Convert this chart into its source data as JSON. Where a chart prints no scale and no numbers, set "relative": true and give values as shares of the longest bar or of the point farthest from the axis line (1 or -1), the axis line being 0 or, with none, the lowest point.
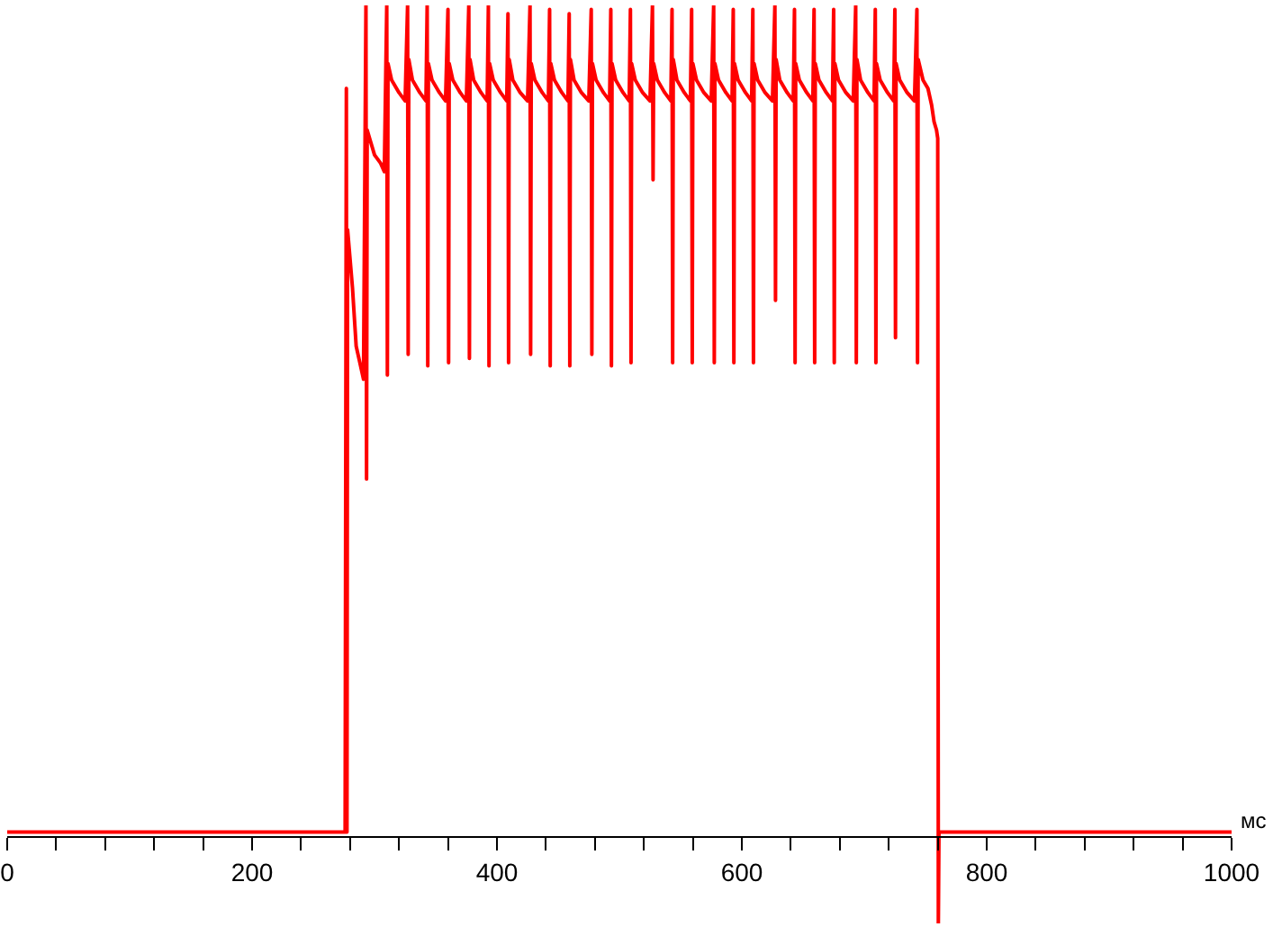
{
  "chart_data": {
    "type": "line",
    "relative": true,
    "xlabel": "мс",
    "color": "#ff0000",
    "marker": "none",
    "legend": false,
    "tick_labels": "x",
    "xlim": [
      0,
      1000
    ],
    "xticks": [
      0,
      {
        "value": 40,
        "label": null
      },
      {
        "value": 80,
        "label": null
      },
      {
        "value": 120,
        "label": null
      },
      {
        "value": 160,
        "label": null
      },
      200,
      {
        "value": 240,
        "label": null
      },
      {
        "value": 280,
        "label": null
      },
      {
        "value": 320,
        "label": null
      },
      {
        "value": 360,
        "label": null
      },
      400,
      {
        "value": 440,
        "label": null
      },
      {
        "value": 480,
        "label": null
      },
      {
        "value": 520,
        "label": null
      },
      {
        "value": 560,
        "label": null
      },
      600,
      {
        "value": 640,
        "label": null
      },
      {
        "value": 680,
        "label": null
      },
      {
        "value": 720,
        "label": null
      },
      {
        "value": 760,
        "label": null
      },
      800,
      {
        "value": 840,
        "label": null
      },
      {
        "value": 880,
        "label": null
      },
      {
        "value": 920,
        "label": null
      },
      {
        "value": 960,
        "label": null
      },
      1000
    ],
    "x": [
      0,
      276,
      277,
      277.5,
      278,
      282,
      285,
      288,
      291,
      293,
      293.5,
      294,
      296,
      300,
      305,
      308,
      310,
      310.5,
      311,
      314,
      320,
      325,
      327,
      327.5,
      328,
      331,
      337,
      342,
      343,
      343.5,
      344,
      347,
      353,
      358,
      360,
      360.5,
      361,
      364,
      370,
      375,
      377,
      377.5,
      378,
      381,
      387,
      392,
      393,
      393.5,
      394,
      397,
      403,
      408,
      409,
      409.5,
      410,
      413,
      419,
      425,
      427,
      427.5,
      428,
      431,
      437,
      442,
      443,
      443.5,
      444,
      447,
      453,
      458,
      459,
      459.5,
      460,
      463,
      469,
      475,
      477,
      477.5,
      478,
      481,
      487,
      492,
      493,
      493.5,
      494,
      497,
      503,
      508,
      509,
      509.5,
      510,
      513,
      519,
      525,
      527,
      527.5,
      528,
      531,
      537,
      542,
      543,
      543.5,
      544,
      547,
      553,
      558,
      559,
      559.5,
      560,
      563,
      569,
      575,
      577,
      577.5,
      578,
      581,
      587,
      592,
      593,
      593.5,
      594,
      597,
      603,
      608,
      609,
      609.5,
      610,
      613,
      619,
      625,
      627,
      627.5,
      628,
      631,
      637,
      642,
      643,
      643.5,
      644,
      647,
      653,
      658,
      659,
      659.5,
      660,
      663,
      669,
      674,
      675,
      675.5,
      676,
      679,
      685,
      691,
      693,
      693.5,
      694,
      697,
      703,
      708,
      709,
      709.5,
      710,
      713,
      719,
      724,
      725,
      725.5,
      726,
      729,
      735,
      741,
      743,
      743.5,
      744,
      748,
      752,
      755,
      757,
      759,
      760,
      760.5,
      761,
      1000
    ],
    "values": [
      0.005,
      0.005,
      0.9,
      0.005,
      0.73,
      0.66,
      0.59,
      0.57,
      0.55,
      1.0,
      0.43,
      0.85,
      0.84,
      0.82,
      0.81,
      0.8,
      1.0,
      0.555,
      0.93,
      0.91,
      0.895,
      0.885,
      1.0,
      0.58,
      0.935,
      0.91,
      0.895,
      0.885,
      1.0,
      0.566,
      0.93,
      0.91,
      0.895,
      0.885,
      0.995,
      0.57,
      0.93,
      0.91,
      0.895,
      0.885,
      1.0,
      0.575,
      0.935,
      0.91,
      0.895,
      0.885,
      1.0,
      0.566,
      0.93,
      0.91,
      0.895,
      0.885,
      0.99,
      0.57,
      0.935,
      0.91,
      0.895,
      0.885,
      1.0,
      0.58,
      0.93,
      0.91,
      0.895,
      0.885,
      0.995,
      0.566,
      0.93,
      0.91,
      0.895,
      0.885,
      0.99,
      0.566,
      0.935,
      0.91,
      0.895,
      0.885,
      0.995,
      0.58,
      0.93,
      0.91,
      0.895,
      0.885,
      0.995,
      0.566,
      0.93,
      0.91,
      0.895,
      0.885,
      0.995,
      0.57,
      0.93,
      0.91,
      0.895,
      0.885,
      1.0,
      0.79,
      0.93,
      0.91,
      0.895,
      0.885,
      0.995,
      0.57,
      0.935,
      0.91,
      0.895,
      0.885,
      0.995,
      0.57,
      0.93,
      0.91,
      0.895,
      0.885,
      1.0,
      0.57,
      0.93,
      0.91,
      0.895,
      0.885,
      0.995,
      0.57,
      0.93,
      0.91,
      0.895,
      0.885,
      0.995,
      0.57,
      0.93,
      0.91,
      0.895,
      0.885,
      1.0,
      0.645,
      0.935,
      0.91,
      0.895,
      0.885,
      0.995,
      0.57,
      0.93,
      0.91,
      0.895,
      0.885,
      0.995,
      0.57,
      0.93,
      0.91,
      0.895,
      0.885,
      0.995,
      0.57,
      0.93,
      0.91,
      0.895,
      0.885,
      1.0,
      0.57,
      0.935,
      0.91,
      0.895,
      0.885,
      0.995,
      0.57,
      0.93,
      0.91,
      0.895,
      0.885,
      0.995,
      0.6,
      0.93,
      0.91,
      0.895,
      0.885,
      0.995,
      0.57,
      0.935,
      0.91,
      0.9,
      0.88,
      0.86,
      0.85,
      0.84,
      -0.105,
      0.005,
      0.005
    ]
  }
}
